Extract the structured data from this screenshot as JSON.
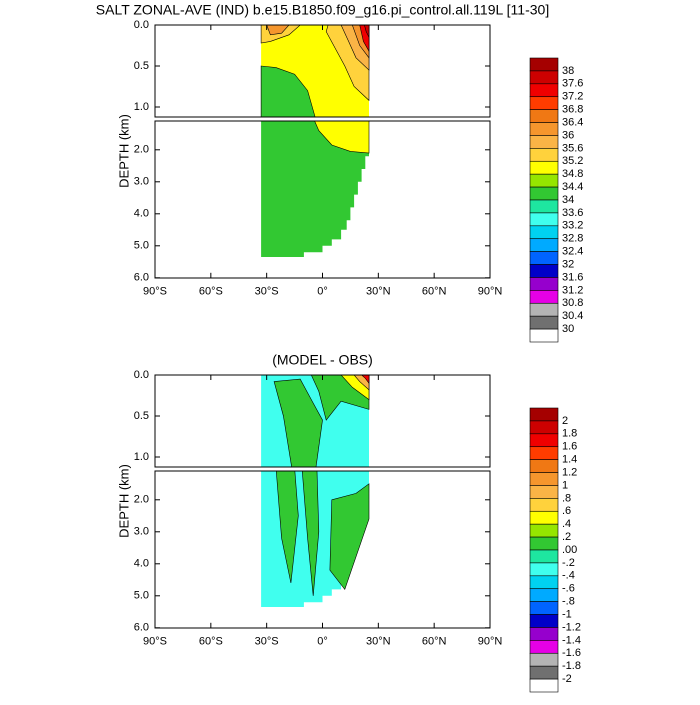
{
  "chart_data": [
    {
      "type": "contour",
      "title": "SALT ZONAL-AVE (IND) b.e15.B1850.f09_g16.pi_control.all.119L [11-30]",
      "ylabel": "DEPTH (km)",
      "xlim": [
        -90,
        90
      ],
      "xticks": [
        {
          "value": -90,
          "label": "90°S"
        },
        {
          "value": -60,
          "label": "60°S"
        },
        {
          "value": -30,
          "label": "30°S"
        },
        {
          "value": 0,
          "label": "0°"
        },
        {
          "value": 30,
          "label": "30°N"
        },
        {
          "value": 60,
          "label": "60°N"
        },
        {
          "value": 90,
          "label": "90°N"
        }
      ],
      "ylim": [
        0,
        6
      ],
      "yticks": [
        {
          "value": 0,
          "label": "0.0"
        },
        0.5,
        {
          "value": 1,
          "label": "1.0"
        },
        {
          "value": 2,
          "label": "2.0"
        },
        {
          "value": 3,
          "label": "3.0"
        },
        {
          "value": 4,
          "label": "4.0"
        },
        {
          "value": 5,
          "label": "5.0"
        },
        {
          "value": 6,
          "label": "6.0"
        }
      ],
      "colorbar": {
        "levels": [
          38,
          37.6,
          37.2,
          36.8,
          36.4,
          36,
          35.6,
          35.2,
          34.8,
          34.4,
          34,
          33.6,
          33.2,
          32.8,
          32.4,
          32,
          31.6,
          31.2,
          30.8,
          30.4,
          30
        ],
        "colors": [
          "#a50000",
          "#cd0000",
          "#f00000",
          "#ff3c00",
          "#f07814",
          "#f5962d",
          "#fab446",
          "#ffd23c",
          "#ffff00",
          "#96e600",
          "#32c832",
          "#1ee6a0",
          "#40ffee",
          "#00d2f0",
          "#00aaff",
          "#0064ff",
          "#0000c8",
          "#9600cd",
          "#e600e6",
          "#b4b4b4",
          "#707070",
          "#ffffff"
        ]
      }
    },
    {
      "type": "contour",
      "title": "(MODEL - OBS)",
      "ylabel": "DEPTH (km)",
      "xlim": [
        -90,
        90
      ],
      "xticks": [
        {
          "value": -90,
          "label": "90°S"
        },
        {
          "value": -60,
          "label": "60°S"
        },
        {
          "value": -30,
          "label": "30°S"
        },
        {
          "value": 0,
          "label": "0°"
        },
        {
          "value": 30,
          "label": "30°N"
        },
        {
          "value": 60,
          "label": "60°N"
        },
        {
          "value": 90,
          "label": "90°N"
        }
      ],
      "ylim": [
        0,
        6
      ],
      "yticks": [
        {
          "value": 0,
          "label": "0.0"
        },
        0.5,
        {
          "value": 1,
          "label": "1.0"
        },
        {
          "value": 2,
          "label": "2.0"
        },
        {
          "value": 3,
          "label": "3.0"
        },
        {
          "value": 4,
          "label": "4.0"
        },
        {
          "value": 5,
          "label": "5.0"
        },
        {
          "value": 6,
          "label": "6.0"
        }
      ],
      "colorbar": {
        "levels": [
          2,
          1.8,
          1.6,
          1.4,
          1.2,
          1,
          {
            "value": 0.8,
            "label": ".8"
          },
          {
            "value": 0.6,
            "label": ".6"
          },
          {
            "value": 0.4,
            "label": ".4"
          },
          {
            "value": 0.2,
            "label": ".2"
          },
          {
            "value": 0,
            "label": ".00"
          },
          {
            "value": -0.2,
            "label": "-.2"
          },
          {
            "value": -0.4,
            "label": "-.4"
          },
          {
            "value": -0.6,
            "label": "-.6"
          },
          {
            "value": -0.8,
            "label": "-.8"
          },
          -1,
          -1.2,
          -1.4,
          -1.6,
          -1.8,
          -2
        ],
        "colors": [
          "#a50000",
          "#cd0000",
          "#f00000",
          "#ff3c00",
          "#f07814",
          "#f5962d",
          "#fab446",
          "#ffd23c",
          "#ffff00",
          "#96e600",
          "#32c832",
          "#1ee6a0",
          "#40ffee",
          "#00d2f0",
          "#00aaff",
          "#0064ff",
          "#0000c8",
          "#9600cd",
          "#e600e6",
          "#b4b4b4",
          "#707070",
          "#ffffff"
        ]
      }
    }
  ]
}
